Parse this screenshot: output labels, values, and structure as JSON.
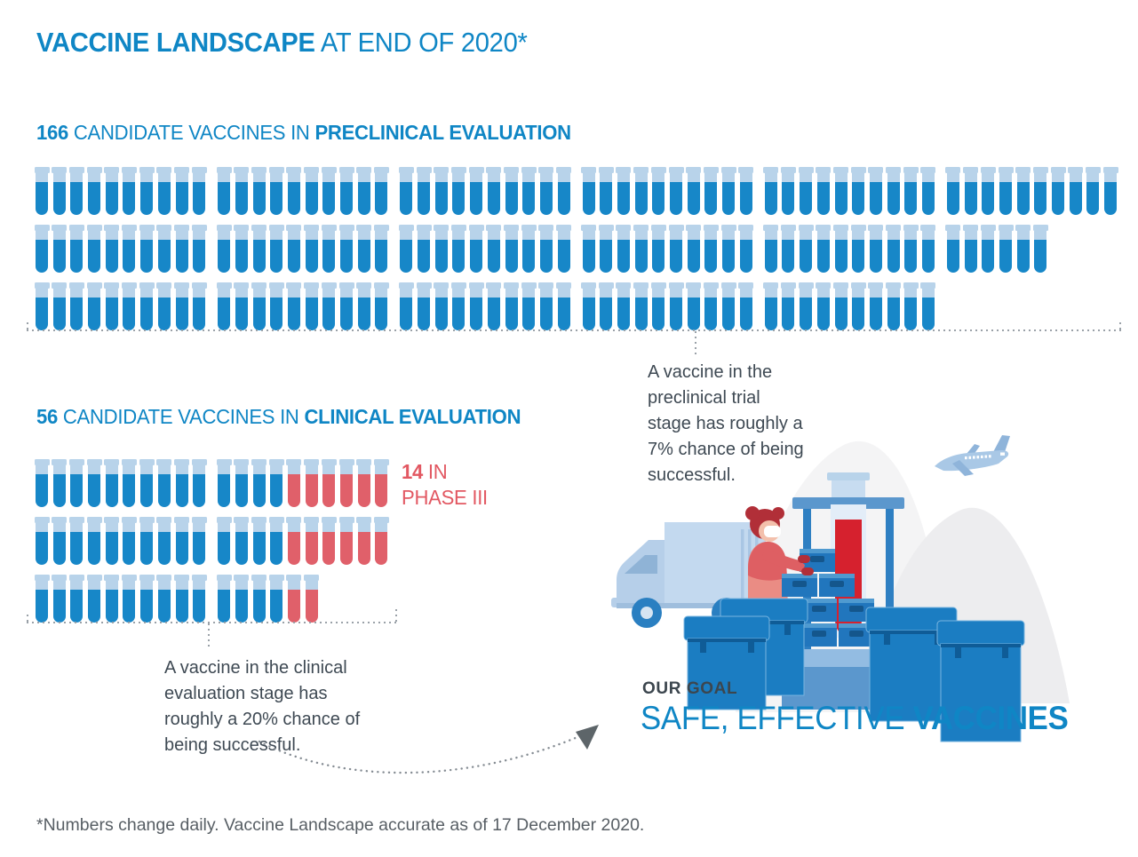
{
  "title": {
    "emphasis": "VACCINE LANDSCAPE",
    "rest": " AT END OF 2020*"
  },
  "preclinical": {
    "count": "166",
    "mid": " CANDIDATE VACCINES IN ",
    "emphasis": "PRECLINICAL EVALUATION",
    "annotation": "A vaccine in the preclinical trial stage has roughly a 7% chance of being successful."
  },
  "clinical": {
    "count": "56",
    "mid": " CANDIDATE VACCINES IN ",
    "emphasis": "CLINICAL EVALUATION",
    "phase3_count": "14",
    "phase3_rest": " IN",
    "phase3_line2": "PHASE III",
    "annotation": "A vaccine in the clinical evaluation stage has roughly a 20% chance of being successful."
  },
  "goal": {
    "kicker": "OUR GOAL",
    "normal": "SAFE, EFFECTIVE ",
    "emphasis": "VACCINES"
  },
  "footnote": "*Numbers change daily. Vaccine Landscape accurate as of 17 December 2020.",
  "colors": {
    "accent_blue": "#0f86c5",
    "tube_blue": "#1787c8",
    "tube_cap": "#b8d3ea",
    "phase3_red": "#e0606a",
    "red_text": "#e25862",
    "deep_red": "#d6212e",
    "annotation_text": "#3e4953",
    "footnote_text": "#575e64",
    "dotted_gray": "#9aa1a8"
  },
  "chart_data": [
    {
      "type": "pictogram",
      "icon": "test-tube",
      "title": "166 CANDIDATE VACCINES IN PRECLINICAL EVALUATION",
      "total": 166,
      "unit": "1 tube = 1 candidate vaccine",
      "series": [
        {
          "name": "Preclinical candidates",
          "color": "#1787c8",
          "count": 166
        }
      ],
      "rows": [
        [
          {
            "blue": 10
          },
          {
            "blue": 10
          },
          {
            "blue": 10
          },
          {
            "blue": 10
          },
          {
            "blue": 10
          },
          {
            "blue": 10
          }
        ],
        [
          {
            "blue": 10
          },
          {
            "blue": 10
          },
          {
            "blue": 10
          },
          {
            "blue": 10
          },
          {
            "blue": 10
          },
          {
            "blue": 6
          }
        ],
        [
          {
            "blue": 10
          },
          {
            "blue": 10
          },
          {
            "blue": 10
          },
          {
            "blue": 10
          },
          {
            "blue": 10
          }
        ]
      ],
      "annotation": "A vaccine in the preclinical trial stage has roughly a 7% chance of being successful."
    },
    {
      "type": "pictogram",
      "icon": "test-tube",
      "title": "56 CANDIDATE VACCINES IN CLINICAL EVALUATION",
      "total": 56,
      "unit": "1 tube = 1 candidate vaccine",
      "series": [
        {
          "name": "Clinical evaluation",
          "color": "#1787c8",
          "count": 42
        },
        {
          "name": "Phase III",
          "color": "#e0606a",
          "count": 14
        }
      ],
      "rows": [
        [
          {
            "blue": 10
          },
          {
            "blue": 4,
            "red": 6
          }
        ],
        [
          {
            "blue": 10
          },
          {
            "blue": 4,
            "red": 6
          }
        ],
        [
          {
            "blue": 10
          },
          {
            "blue": 4,
            "red": 2
          }
        ]
      ],
      "callout": "14 IN PHASE III",
      "annotation": "A vaccine in the clinical evaluation stage has roughly a 20% chance of being successful."
    }
  ]
}
